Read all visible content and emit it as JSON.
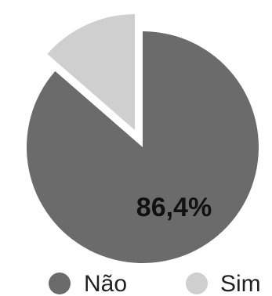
{
  "chart_data": {
    "type": "pie",
    "categories": [
      "Não",
      "Sim"
    ],
    "values": [
      86.4,
      13.6
    ],
    "data_labels": [
      "86,4%",
      ""
    ],
    "colors": [
      "#6b6b6b",
      "#cfcfcf"
    ],
    "exploded": "Sim",
    "legend_position": "bottom"
  }
}
